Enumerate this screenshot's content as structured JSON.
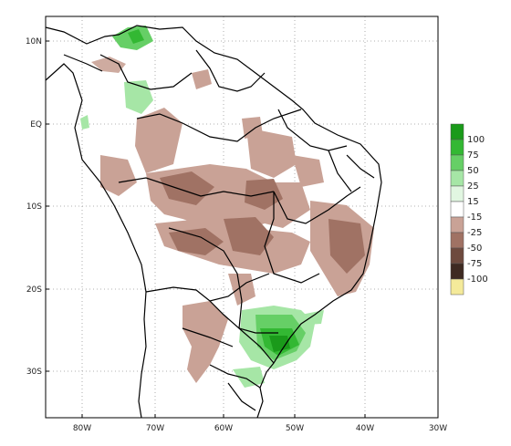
{
  "header": {
    "title": ""
  },
  "map": {
    "lat_labels": [
      "10N",
      "EQ",
      "10S",
      "20S",
      "30S"
    ],
    "lon_labels": [
      "80W",
      "70W",
      "60W",
      "50W",
      "40W",
      "30W"
    ],
    "grid": true
  },
  "colorbar": {
    "bins": [
      {
        "label": "100",
        "color": "#1a9a1a"
      },
      {
        "label": "75",
        "color": "#33b833"
      },
      {
        "label": "50",
        "color": "#66cf66"
      },
      {
        "label": "25",
        "color": "#a6e6a6"
      },
      {
        "label": "15",
        "color": "#e1f6e1"
      },
      {
        "label": "-15",
        "color": "#ffffff"
      },
      {
        "label": "-25",
        "color": "#c9a296"
      },
      {
        "label": "-50",
        "color": "#a07264"
      },
      {
        "label": "-75",
        "color": "#6e4a3e"
      },
      {
        "label": "-100",
        "color": "#3e2a22"
      },
      {
        "label": "",
        "color": "#f4ea9a"
      }
    ]
  }
}
